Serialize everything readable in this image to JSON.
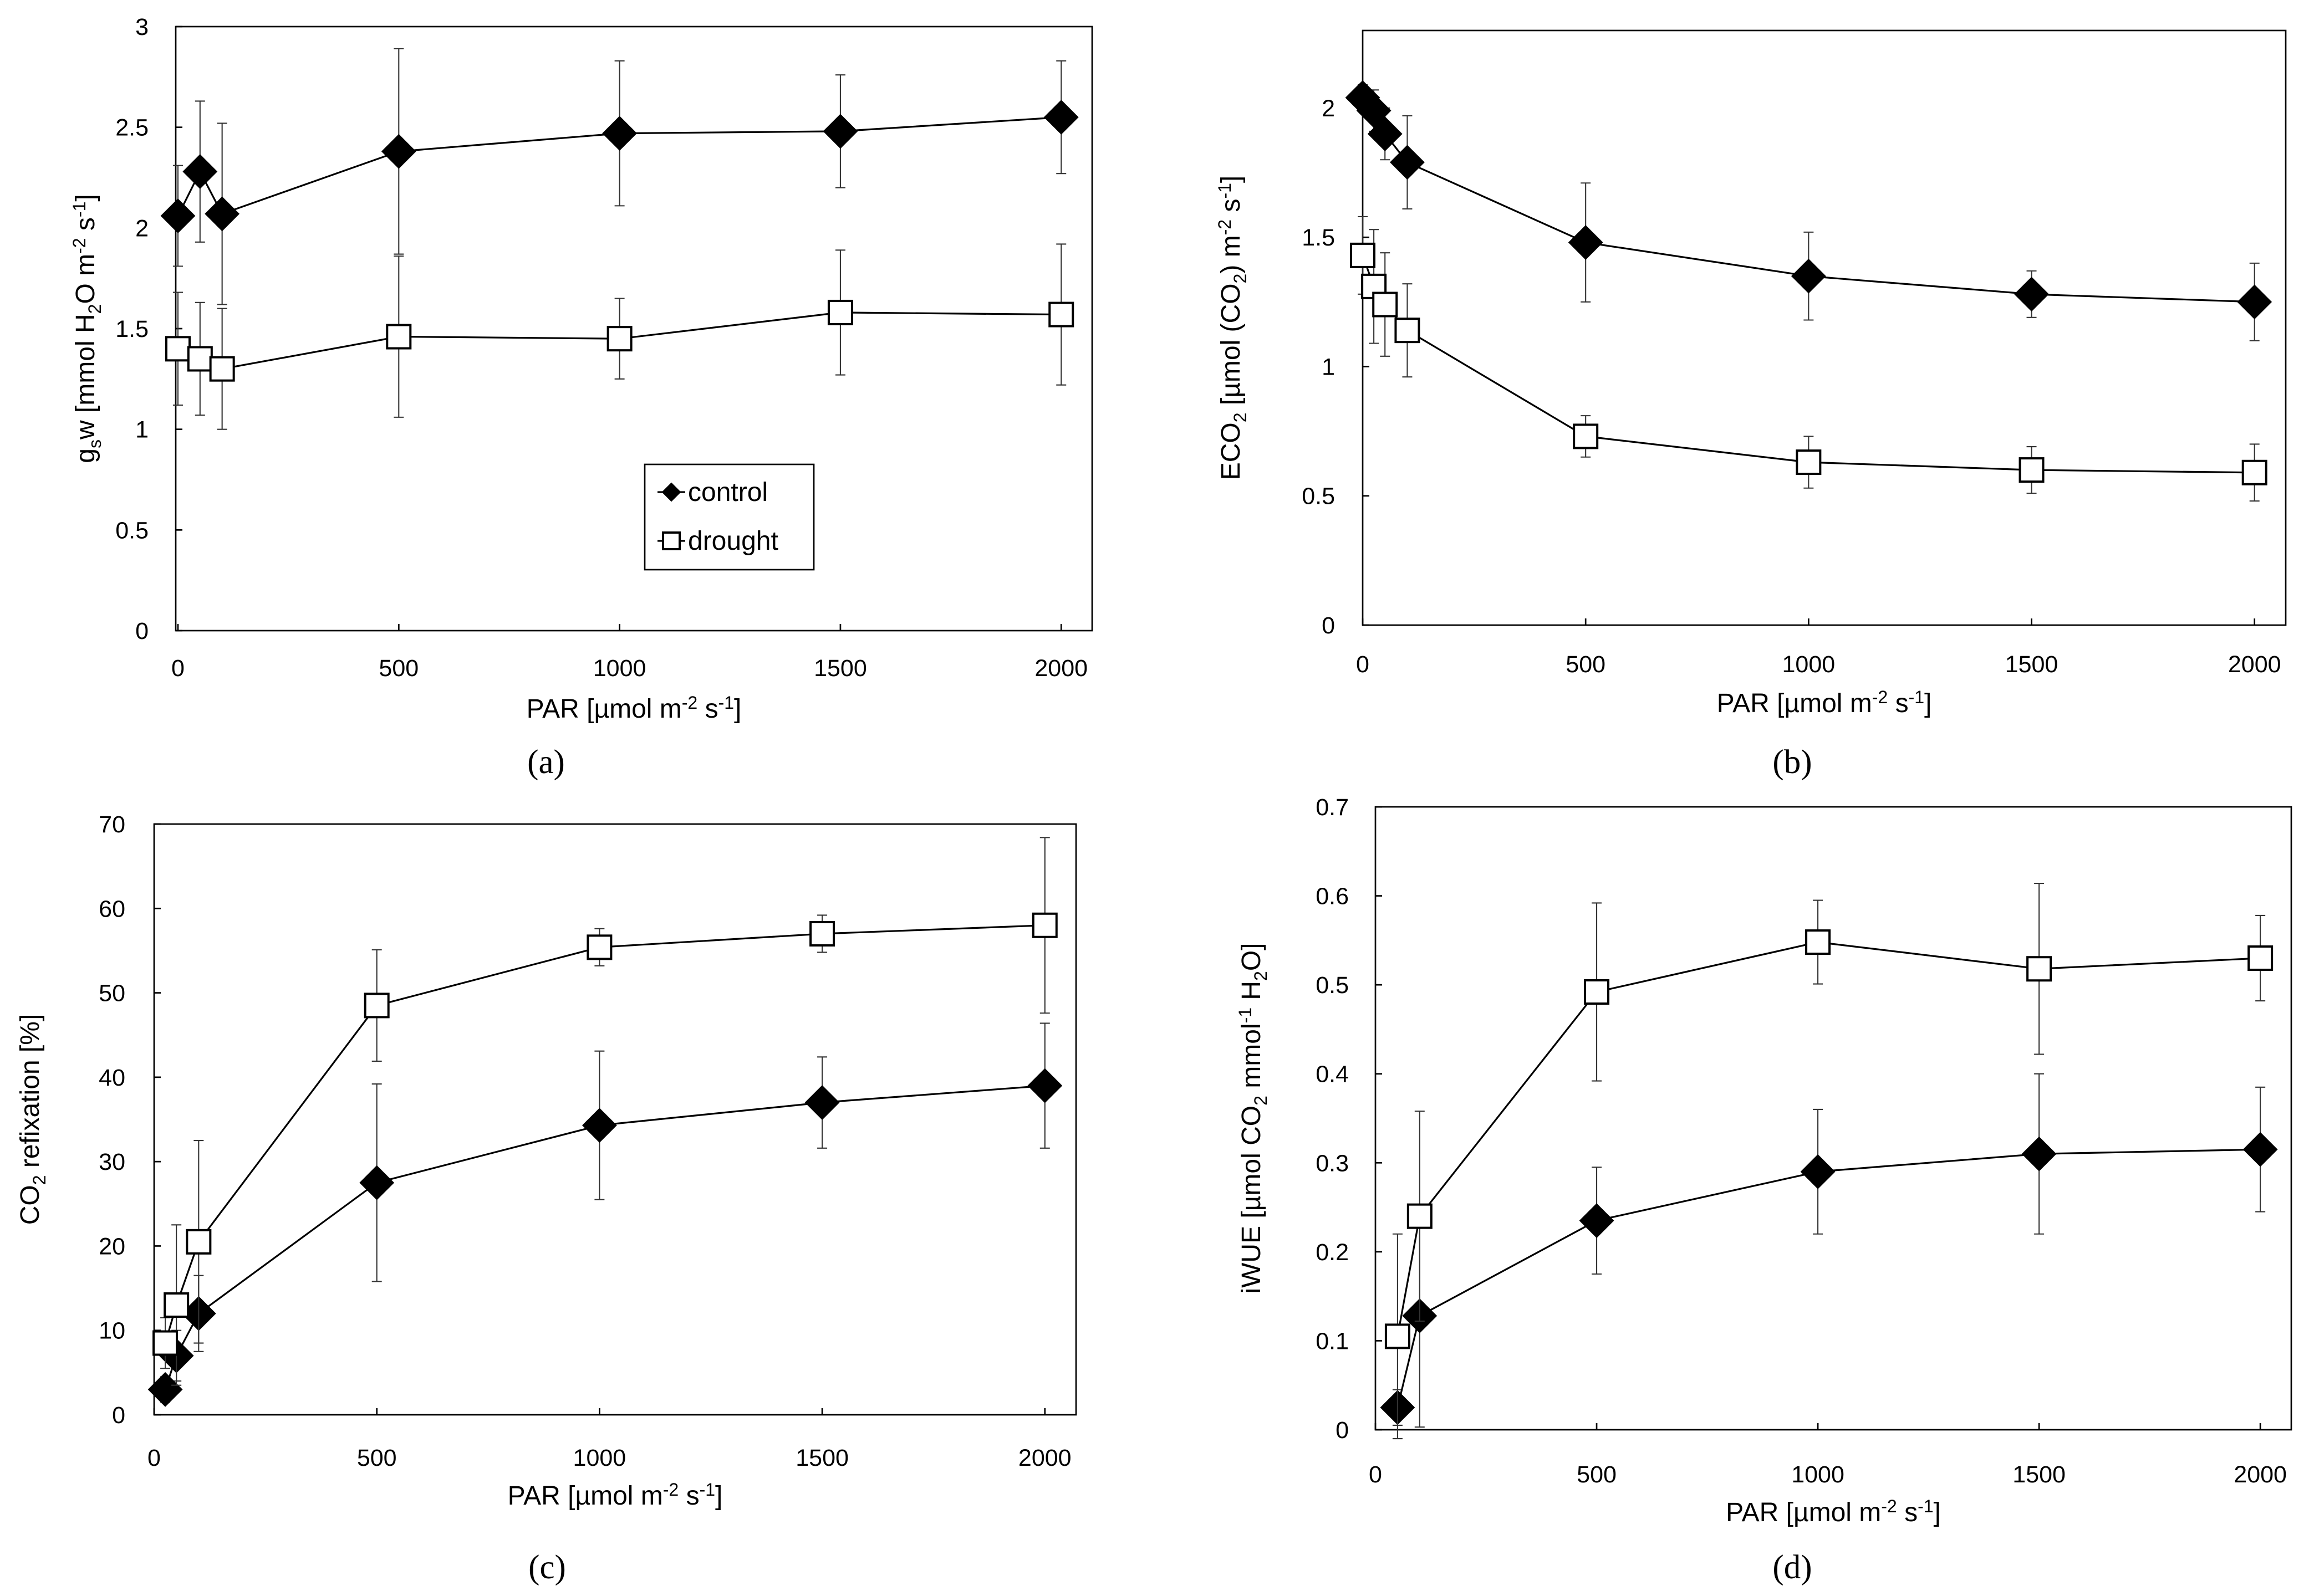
{
  "chart_data": [
    {
      "id": "a",
      "type": "line",
      "panel_label": "(a)",
      "xlabel": "PAR [µmol m-2 s-1]",
      "ylabel": "gsw [mmol H2O m-2 s-1]",
      "xlim": [
        -5,
        2070
      ],
      "ylim": [
        0,
        3
      ],
      "xticks": [
        0,
        500,
        1000,
        1500,
        2000
      ],
      "xtick_labels": [
        "0",
        "500",
        "1000",
        "1500",
        "2000"
      ],
      "yticks": [
        0,
        0.5,
        1,
        1.5,
        2,
        2.5,
        3
      ],
      "ytick_labels": [
        "0",
        "0.5",
        "1",
        "1.5",
        "2",
        "2.5",
        "3"
      ],
      "legend": [
        {
          "name": "control",
          "marker": "diamond-filled"
        },
        {
          "name": "drought",
          "marker": "square-open"
        }
      ],
      "series": [
        {
          "name": "control",
          "marker": "diamond-filled",
          "x": [
            0,
            50,
            100,
            500,
            1000,
            1500,
            2000
          ],
          "y": [
            2.06,
            2.28,
            2.07,
            2.38,
            2.47,
            2.48,
            2.55
          ],
          "err": [
            0.25,
            0.35,
            0.45,
            0.51,
            0.36,
            0.28,
            0.28
          ]
        },
        {
          "name": "drought",
          "marker": "square-open",
          "x": [
            0,
            50,
            100,
            500,
            1000,
            1500,
            2000
          ],
          "y": [
            1.4,
            1.35,
            1.3,
            1.46,
            1.45,
            1.58,
            1.57
          ],
          "err": [
            0.28,
            0.28,
            0.3,
            0.4,
            0.2,
            0.31,
            0.35
          ]
        }
      ]
    },
    {
      "id": "b",
      "type": "line",
      "panel_label": "(b)",
      "xlabel": "PAR [µmol m-2 s-1]",
      "ylabel": "ECO2 [µmol (CO2) m-2 s-1]",
      "xlim": [
        0,
        2070
      ],
      "ylim": [
        0,
        2.3
      ],
      "xticks": [
        0,
        500,
        1000,
        1500,
        2000
      ],
      "xtick_labels": [
        "0",
        "500",
        "1000",
        "1500",
        "2000"
      ],
      "yticks": [
        0,
        0.5,
        1,
        1.5,
        2
      ],
      "ytick_labels": [
        "0",
        "0.5",
        "1",
        "1.5",
        "2"
      ],
      "series": [
        {
          "name": "control",
          "marker": "diamond-filled",
          "x": [
            0,
            25,
            50,
            100,
            500,
            1000,
            1500,
            2000
          ],
          "y": [
            2.04,
            1.99,
            1.9,
            1.79,
            1.48,
            1.35,
            1.28,
            1.25
          ],
          "err": [
            0.05,
            0.08,
            0.1,
            0.18,
            0.23,
            0.17,
            0.09,
            0.15
          ]
        },
        {
          "name": "drought",
          "marker": "square-open",
          "x": [
            0,
            25,
            50,
            100,
            500,
            1000,
            1500,
            2000
          ],
          "y": [
            1.43,
            1.31,
            1.24,
            1.14,
            0.73,
            0.63,
            0.6,
            0.59
          ],
          "err": [
            0.15,
            0.22,
            0.2,
            0.18,
            0.08,
            0.1,
            0.09,
            0.11
          ]
        }
      ]
    },
    {
      "id": "c",
      "type": "line",
      "panel_label": "(c)",
      "xlabel": "PAR [µmol m-2 s-1]",
      "ylabel": "CO2 refixation [%]",
      "xlim": [
        0,
        2070
      ],
      "ylim": [
        0,
        70
      ],
      "xticks": [
        0,
        500,
        1000,
        1500,
        2000
      ],
      "xtick_labels": [
        "0",
        "500",
        "1000",
        "1500",
        "2000"
      ],
      "yticks": [
        0,
        10,
        20,
        30,
        40,
        50,
        60,
        70
      ],
      "ytick_labels": [
        "0",
        "10",
        "20",
        "30",
        "40",
        "50",
        "60",
        "70"
      ],
      "series": [
        {
          "name": "control",
          "marker": "diamond-filled",
          "x": [
            25,
            50,
            100,
            500,
            1000,
            1500,
            2000
          ],
          "y": [
            3,
            7,
            12,
            27.5,
            34.3,
            37,
            39
          ],
          "err": [
            1.5,
            3,
            4.5,
            11.7,
            8.8,
            5.4,
            7.4
          ]
        },
        {
          "name": "drought",
          "marker": "square-open",
          "x": [
            25,
            50,
            100,
            500,
            1000,
            1500,
            2000
          ],
          "y": [
            8.5,
            13,
            20.5,
            48.5,
            55.4,
            57,
            58
          ],
          "err": [
            3,
            9.5,
            12,
            6.6,
            2.2,
            2.2,
            10.4
          ]
        }
      ]
    },
    {
      "id": "d",
      "type": "line",
      "panel_label": "(d)",
      "xlabel": "PAR [µmol m-2 s-1]",
      "ylabel": "iWUE [µmol CO2 mmol-1 H2O]",
      "xlim": [
        0,
        2070
      ],
      "ylim": [
        0,
        0.7
      ],
      "xticks": [
        0,
        500,
        1000,
        1500,
        2000
      ],
      "xtick_labels": [
        "0",
        "500",
        "1000",
        "1500",
        "2000"
      ],
      "yticks": [
        0,
        0.1,
        0.2,
        0.3,
        0.4,
        0.5,
        0.6,
        0.7
      ],
      "ytick_labels": [
        "0",
        "0.1",
        "0.2",
        "0.3",
        "0.4",
        "0.5",
        "0.6",
        "0.7"
      ],
      "series": [
        {
          "name": "control",
          "marker": "diamond-filled",
          "x": [
            50,
            100,
            500,
            1000,
            1500,
            2000
          ],
          "y": [
            0.025,
            0.128,
            0.235,
            0.29,
            0.31,
            0.315
          ],
          "err": [
            0.02,
            0.125,
            0.06,
            0.07,
            0.09,
            0.07
          ]
        },
        {
          "name": "drought",
          "marker": "square-open",
          "x": [
            50,
            100,
            500,
            1000,
            1500,
            2000
          ],
          "y": [
            0.105,
            0.24,
            0.492,
            0.548,
            0.518,
            0.53
          ],
          "err": [
            0.115,
            0.118,
            0.1,
            0.047,
            0.096,
            0.048
          ]
        }
      ]
    }
  ]
}
